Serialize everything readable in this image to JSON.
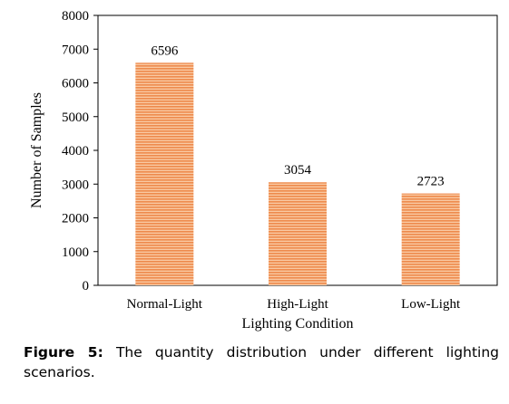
{
  "chart_data": {
    "type": "bar",
    "categories": [
      "Normal-Light",
      "High-Light",
      "Low-Light"
    ],
    "values": [
      6596,
      3054,
      2723
    ],
    "data_labels": [
      "6596",
      "3054",
      "2723"
    ],
    "xlabel": "Lighting Condition",
    "ylabel": "Number of Samples",
    "ylim": [
      0,
      8000
    ],
    "yticks": [
      "0",
      "1000",
      "2000",
      "3000",
      "4000",
      "5000",
      "6000",
      "7000",
      "8000"
    ],
    "grid": false,
    "bar_color": "#f4a460",
    "bar_stripe_color": "#e8733a",
    "legend": "none"
  },
  "caption": {
    "label": "Figure 5:",
    "text": "The quantity distribution under different lighting scenarios."
  }
}
